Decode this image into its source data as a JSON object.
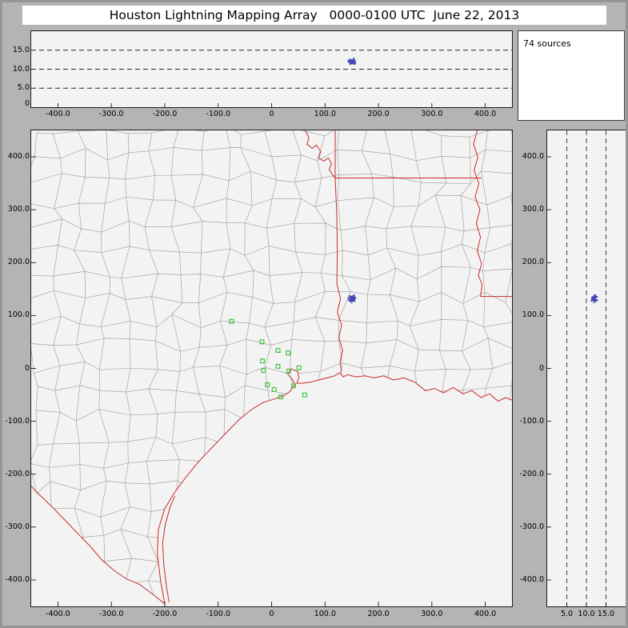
{
  "title": "Houston Lightning Mapping Array   0000-0100 UTC  June 22, 2013",
  "sources_panel": {
    "label": "74 sources"
  },
  "colors": {
    "frame": "#b4b4b4",
    "plot_bg": "#f3f3f3",
    "plot_border": "#1c1c1c",
    "county": "#a5a5a5",
    "state": "#c92a2a",
    "station": "#2ec42e",
    "source": "#4747b8",
    "grid_dash": "#2a2a2a",
    "title_bg": "#ffffff"
  },
  "chart_data": [
    {
      "name": "altitude_vs_eastwest_panel",
      "type": "scatter",
      "position": "top",
      "xlim": [
        -450,
        450
      ],
      "ylim": [
        0,
        20
      ],
      "x_tick_values": [
        -400,
        -300,
        -200,
        -100,
        0,
        100,
        200,
        300,
        400
      ],
      "x_tick_labels": [
        "-400.0",
        "-300.0",
        "-200.0",
        "-100.0",
        "0",
        "100.0",
        "200.0",
        "300.0",
        "400.0"
      ],
      "y_tick_values": [
        15,
        10,
        5
      ],
      "y_tick_labels": [
        "15.0",
        "10.0",
        "5.0"
      ],
      "y_bottom_label": "0",
      "y_gridlines": [
        5,
        10,
        15
      ],
      "grid_style": "dashed",
      "series": [
        {
          "name": "vhf_sources",
          "marker": "point",
          "cluster": {
            "x_center": 151,
            "alt_center": 11.9,
            "x_spread": 9,
            "alt_spread": 1.1,
            "count": 74
          }
        }
      ]
    },
    {
      "name": "plan_view_map",
      "type": "scatter",
      "position": "main",
      "xlim": [
        -450,
        450
      ],
      "ylim": [
        -450,
        450
      ],
      "x_tick_values": [
        -400,
        -300,
        -200,
        -100,
        0,
        100,
        200,
        300,
        400
      ],
      "x_tick_labels": [
        "-400.0",
        "-300.0",
        "-200.0",
        "-100.0",
        "0",
        "100.0",
        "200.0",
        "300.0",
        "400.0"
      ],
      "y_tick_values": [
        400,
        300,
        200,
        100,
        0,
        -100,
        -200,
        -300,
        -400
      ],
      "y_tick_labels": [
        "400.0",
        "300.0",
        "200.0",
        "100.0",
        "0",
        "-100.0",
        "-200.0",
        "-300.0",
        "-400.0"
      ],
      "stations": [
        [
          -75,
          89
        ],
        [
          -18,
          50
        ],
        [
          12,
          34
        ],
        [
          31,
          29
        ],
        [
          -17,
          14
        ],
        [
          -15,
          -4
        ],
        [
          12,
          4
        ],
        [
          32,
          -5
        ],
        [
          51,
          1
        ],
        [
          -8,
          -31
        ],
        [
          5,
          -40
        ],
        [
          17,
          -54
        ],
        [
          41,
          -33
        ],
        [
          62,
          -50
        ]
      ],
      "sources_cluster": {
        "east": 151,
        "north": 132,
        "east_spread": 9,
        "north_spread": 9,
        "count": 74
      },
      "map_layers": {
        "county_boundaries": true,
        "state_boundaries": true,
        "coastline": true
      }
    },
    {
      "name": "altitude_vs_northsouth_panel",
      "type": "scatter",
      "position": "right",
      "xlim": [
        0,
        20
      ],
      "ylim": [
        -450,
        450
      ],
      "x_gridlines": [
        5,
        10,
        15
      ],
      "x_tick_labels": [
        "5.0",
        "10.0",
        "15.0"
      ],
      "y_tick_values": [
        400,
        300,
        200,
        100,
        0,
        -100,
        -200,
        -300,
        -400
      ],
      "y_tick_labels": [
        "400.0",
        "300.0",
        "200.0",
        "100.0",
        "0",
        "-100.0",
        "-200.0",
        "-300.0",
        "-400.0"
      ],
      "grid_style": "dashed"
    }
  ]
}
